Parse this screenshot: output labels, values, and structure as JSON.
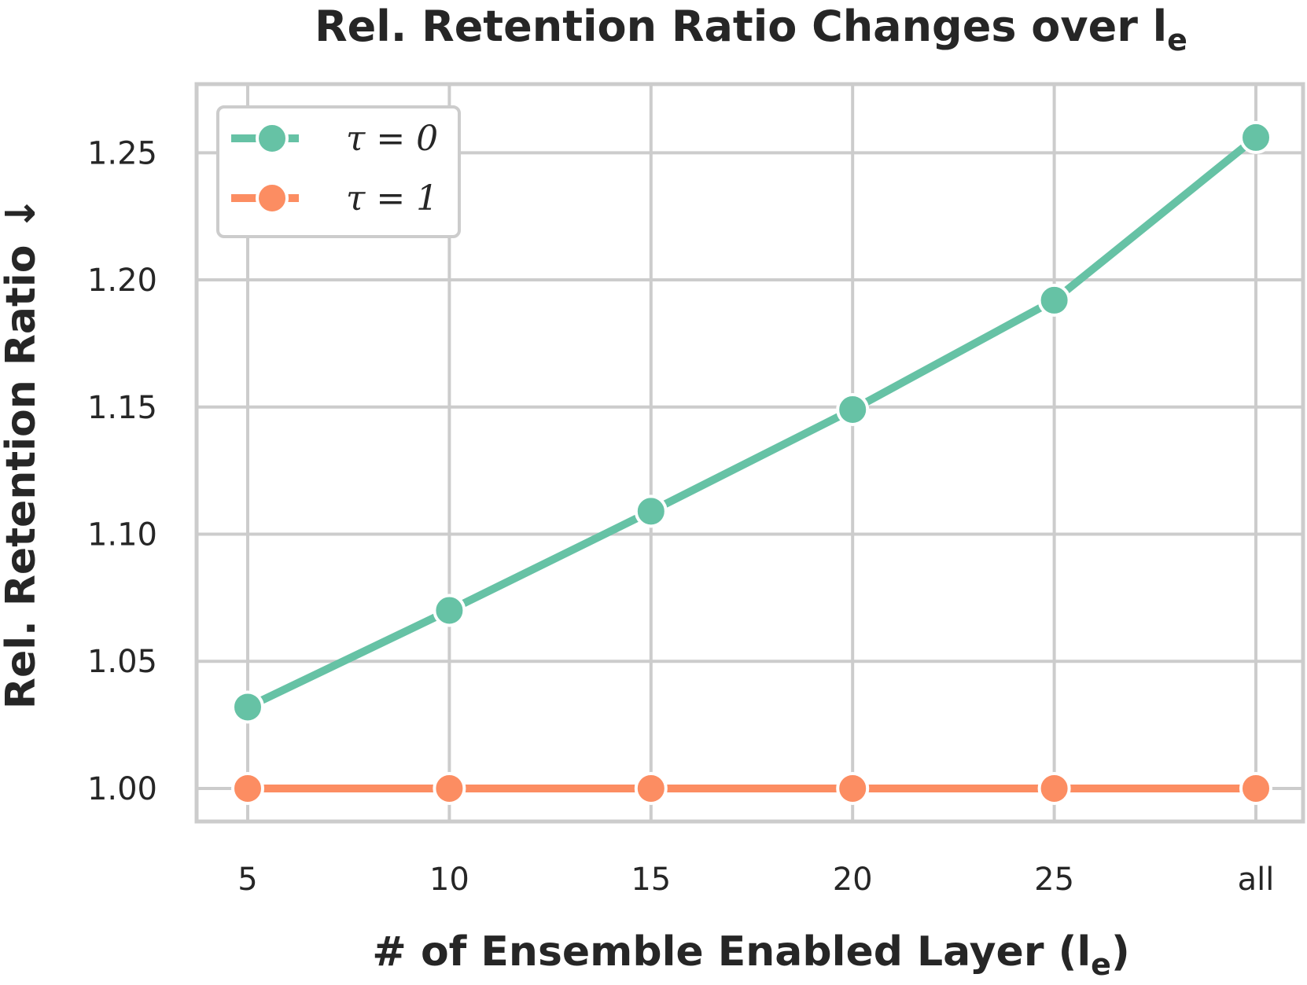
{
  "chart_data": {
    "type": "line",
    "title": "Rel. Retention Ratio Changes over l",
    "title_subscript": "e",
    "xlabel": "# of Ensemble Enabled Layer (l",
    "xlabel_subscript": "e",
    "xlabel_suffix": ")",
    "ylabel": "Rel. Retention Ratio ↓",
    "categories": [
      "5",
      "10",
      "15",
      "20",
      "25",
      "all"
    ],
    "yticks": [
      "1.00",
      "1.05",
      "1.10",
      "1.15",
      "1.20",
      "1.25"
    ],
    "ylim": [
      0.987,
      1.277
    ],
    "grid": true,
    "legend_position": "top-left",
    "series": [
      {
        "name": "τ = 0",
        "color": "#66c2a5",
        "values": [
          1.032,
          1.07,
          1.109,
          1.149,
          1.192,
          1.256
        ]
      },
      {
        "name": "τ = 1",
        "color": "#fc8d62",
        "values": [
          1.0,
          1.0,
          1.0,
          1.0,
          1.0,
          1.0
        ]
      }
    ]
  }
}
